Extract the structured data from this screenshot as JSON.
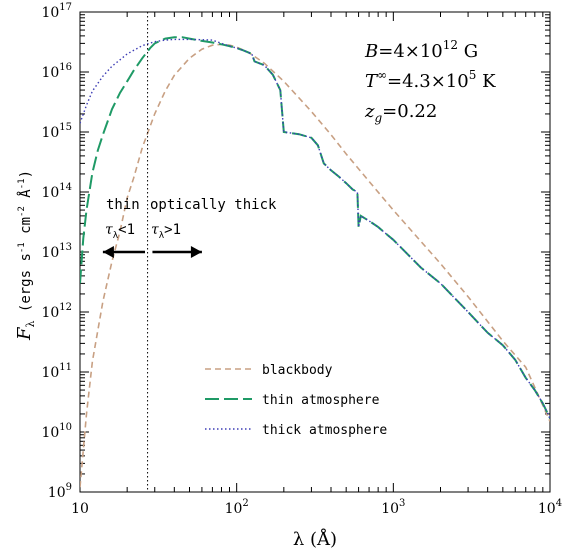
{
  "chart_data": {
    "type": "line",
    "xscale": "log",
    "yscale": "log",
    "xlim": [
      10,
      10000
    ],
    "ylim": [
      1000000000.0,
      1e+17
    ],
    "xlabel": "λ (Å)",
    "ylabel": "F",
    "ylabel_sub": "λ",
    "ylabel_units": "(ergs s",
    "ylabel_units_2": "cm",
    "ylabel_units_3": "Å",
    "ylabel_units_end": ")",
    "ylabel_exp_1": "-1",
    "ylabel_exp_2": "-2",
    "ylabel_exp_3": "-1",
    "x_ticks": [
      {
        "value": 10,
        "base": "10",
        "exp": ""
      },
      {
        "value": 100,
        "base": "10",
        "exp": "2"
      },
      {
        "value": 1000,
        "base": "10",
        "exp": "3"
      },
      {
        "value": 10000,
        "base": "10",
        "exp": "4"
      }
    ],
    "y_ticks": [
      {
        "value": 1000000000.0,
        "base": "10",
        "exp": "9"
      },
      {
        "value": 10000000000.0,
        "base": "10",
        "exp": "10"
      },
      {
        "value": 100000000000.0,
        "base": "10",
        "exp": "11"
      },
      {
        "value": 1000000000000.0,
        "base": "10",
        "exp": "12"
      },
      {
        "value": 10000000000000.0,
        "base": "10",
        "exp": "13"
      },
      {
        "value": 100000000000000.0,
        "base": "10",
        "exp": "14"
      },
      {
        "value": 1000000000000000.0,
        "base": "10",
        "exp": "15"
      },
      {
        "value": 1e+16,
        "base": "10",
        "exp": "16"
      },
      {
        "value": 1e+17,
        "base": "10",
        "exp": "17"
      }
    ],
    "series": [
      {
        "name": "blackbody",
        "color": "#c8a083",
        "dash": "6,4",
        "points": [
          [
            10,
            1200000000.0
          ],
          [
            11,
            20000000000.0
          ],
          [
            12,
            150000000000.0
          ],
          [
            14,
            1500000000000.0
          ],
          [
            16,
            7000000000000.0
          ],
          [
            18,
            22000000000000.0
          ],
          [
            20,
            80000000000000.0
          ],
          [
            22,
            170000000000000.0
          ],
          [
            25,
            550000000000000.0
          ],
          [
            30,
            2000000000000000.0
          ],
          [
            35,
            4800000000000000.0
          ],
          [
            40,
            8800000000000000.0
          ],
          [
            50,
            1.7e+16
          ],
          [
            60,
            2.4e+16
          ],
          [
            70,
            2.8e+16
          ],
          [
            80,
            2.9e+16
          ],
          [
            90,
            2.8e+16
          ],
          [
            100,
            2.6e+16
          ],
          [
            120,
            2.1e+16
          ],
          [
            150,
            1.4e+16
          ],
          [
            200,
            7000000000000000.0
          ],
          [
            300,
            2200000000000000.0
          ],
          [
            400,
            900000000000000.0
          ],
          [
            500,
            430000000000000.0
          ],
          [
            700,
            150000000000000.0
          ],
          [
            1000,
            50000000000000.0
          ],
          [
            1500,
            15000000000000.0
          ],
          [
            2000,
            6400000000000.0
          ],
          [
            3000,
            1800000000000.0
          ],
          [
            5000,
            330000000000.0
          ],
          [
            7000,
            120000000000.0
          ],
          [
            10000,
            15000000000.0
          ]
        ]
      },
      {
        "name": "thin atmosphere",
        "color": "#1f9a66",
        "dash": "14,5",
        "points": [
          [
            10,
            3000000000000.0
          ],
          [
            10.5,
            17000000000000.0
          ],
          [
            11,
            50000000000000.0
          ],
          [
            12,
            210000000000000.0
          ],
          [
            13,
            500000000000000.0
          ],
          [
            14,
            900000000000000.0
          ],
          [
            16,
            2400000000000000.0
          ],
          [
            18,
            4500000000000000.0
          ],
          [
            20,
            7000000000000000.0
          ],
          [
            22,
            1.05e+16
          ],
          [
            25,
            1.7e+16
          ],
          [
            28,
            2.5e+16
          ],
          [
            30,
            3e+16
          ],
          [
            35,
            3.6e+16
          ],
          [
            40,
            3.8e+16
          ],
          [
            45,
            3.8e+16
          ],
          [
            50,
            3.6e+16
          ],
          [
            60,
            3.3e+16
          ],
          [
            70,
            3.1e+16
          ],
          [
            80,
            2.9e+16
          ],
          [
            90,
            2.7e+16
          ],
          [
            100,
            2.5e+16
          ],
          [
            110,
            2.3e+16
          ],
          [
            125,
            2e+16
          ],
          [
            130,
            1.5e+16
          ],
          [
            150,
            1.3e+16
          ],
          [
            170,
            9000000000000000.0
          ],
          [
            190,
            5000000000000000.0
          ],
          [
            200,
            1000000000000000.0
          ],
          [
            250,
            920000000000000.0
          ],
          [
            300,
            800000000000000.0
          ],
          [
            330,
            600000000000000.0
          ],
          [
            360,
            300000000000000.0
          ],
          [
            400,
            230000000000000.0
          ],
          [
            450,
            180000000000000.0
          ],
          [
            500,
            140000000000000.0
          ],
          [
            550,
            110000000000000.0
          ],
          [
            590,
            100000000000000.0
          ],
          [
            600,
            26000000000000.0
          ],
          [
            620,
            40000000000000.0
          ],
          [
            700,
            33000000000000.0
          ],
          [
            800,
            26000000000000.0
          ],
          [
            900,
            20000000000000.0
          ],
          [
            1000,
            16000000000000.0
          ],
          [
            1500,
            5500000000000.0
          ],
          [
            2000,
            3000000000000.0
          ],
          [
            3000,
            1000000000000.0
          ],
          [
            4000,
            450000000000.0
          ],
          [
            5000,
            280000000000.0
          ],
          [
            6000,
            160000000000.0
          ],
          [
            7000,
            80000000000.0
          ],
          [
            8000,
            50000000000.0
          ],
          [
            9000,
            30000000000.0
          ],
          [
            10000,
            17000000000.0
          ]
        ]
      },
      {
        "name": "thick atmosphere",
        "color": "#3d3db5",
        "dash": "1.5,2.5",
        "points": [
          [
            10,
            1400000000000000.0
          ],
          [
            11,
            2800000000000000.0
          ],
          [
            12,
            4800000000000000.0
          ],
          [
            14,
            8500000000000000.0
          ],
          [
            16,
            1.25e+16
          ],
          [
            18,
            1.6e+16
          ],
          [
            20,
            2e+16
          ],
          [
            23,
            2.45e+16
          ],
          [
            25,
            2.75e+16
          ],
          [
            30,
            3.2e+16
          ],
          [
            35,
            3.4e+16
          ],
          [
            40,
            3.5e+16
          ],
          [
            50,
            3.5e+16
          ],
          [
            60,
            3.45e+16
          ],
          [
            70,
            3.4e+16
          ],
          [
            80,
            3e+16
          ],
          [
            90,
            2.7e+16
          ],
          [
            100,
            2.5e+16
          ],
          [
            110,
            2.3e+16
          ],
          [
            125,
            2e+16
          ],
          [
            130,
            1.5e+16
          ],
          [
            150,
            1.3e+16
          ],
          [
            170,
            9000000000000000.0
          ],
          [
            190,
            5000000000000000.0
          ],
          [
            200,
            1000000000000000.0
          ],
          [
            250,
            920000000000000.0
          ],
          [
            300,
            800000000000000.0
          ],
          [
            330,
            600000000000000.0
          ],
          [
            360,
            300000000000000.0
          ],
          [
            400,
            230000000000000.0
          ],
          [
            450,
            180000000000000.0
          ],
          [
            500,
            140000000000000.0
          ],
          [
            550,
            110000000000000.0
          ],
          [
            590,
            100000000000000.0
          ],
          [
            600,
            26000000000000.0
          ],
          [
            620,
            40000000000000.0
          ],
          [
            700,
            33000000000000.0
          ],
          [
            800,
            26000000000000.0
          ],
          [
            900,
            20000000000000.0
          ],
          [
            1000,
            16000000000000.0
          ],
          [
            1500,
            5500000000000.0
          ],
          [
            2000,
            3000000000000.0
          ],
          [
            3000,
            1000000000000.0
          ],
          [
            4000,
            450000000000.0
          ],
          [
            5000,
            280000000000.0
          ],
          [
            6000,
            160000000000.0
          ],
          [
            7000,
            80000000000.0
          ],
          [
            8000,
            50000000000.0
          ],
          [
            9000,
            30000000000.0
          ],
          [
            10000,
            17000000000.0
          ]
        ]
      }
    ],
    "vline": {
      "x": 27
    },
    "annotations": {
      "thin_label": "thin",
      "thick_label": "optically thick",
      "tau_thin_sym": "τ",
      "tau_thin_sub": "λ",
      "tau_thin_rel": "<1",
      "tau_thick_sym": "τ",
      "tau_thick_sub": "λ",
      "tau_thick_rel": ">1",
      "arrow_y": 10000000000000.0,
      "arrow_left_x": [
        26,
        14
      ],
      "arrow_right_x": [
        29,
        60
      ]
    },
    "params": {
      "b_sym": "B",
      "b_val": "=4×10",
      "b_exp": "12",
      "b_unit": " G",
      "t_sym": "T",
      "t_sup": "∞",
      "t_val": "=4.3×10",
      "t_exp": "5",
      "t_unit": " K",
      "z_sym": "z",
      "z_sub": "g",
      "z_val": "=0.22"
    },
    "legend": {
      "position": "lower-center",
      "entries": [
        "blackbody",
        "thin atmosphere",
        "thick atmosphere"
      ]
    }
  }
}
